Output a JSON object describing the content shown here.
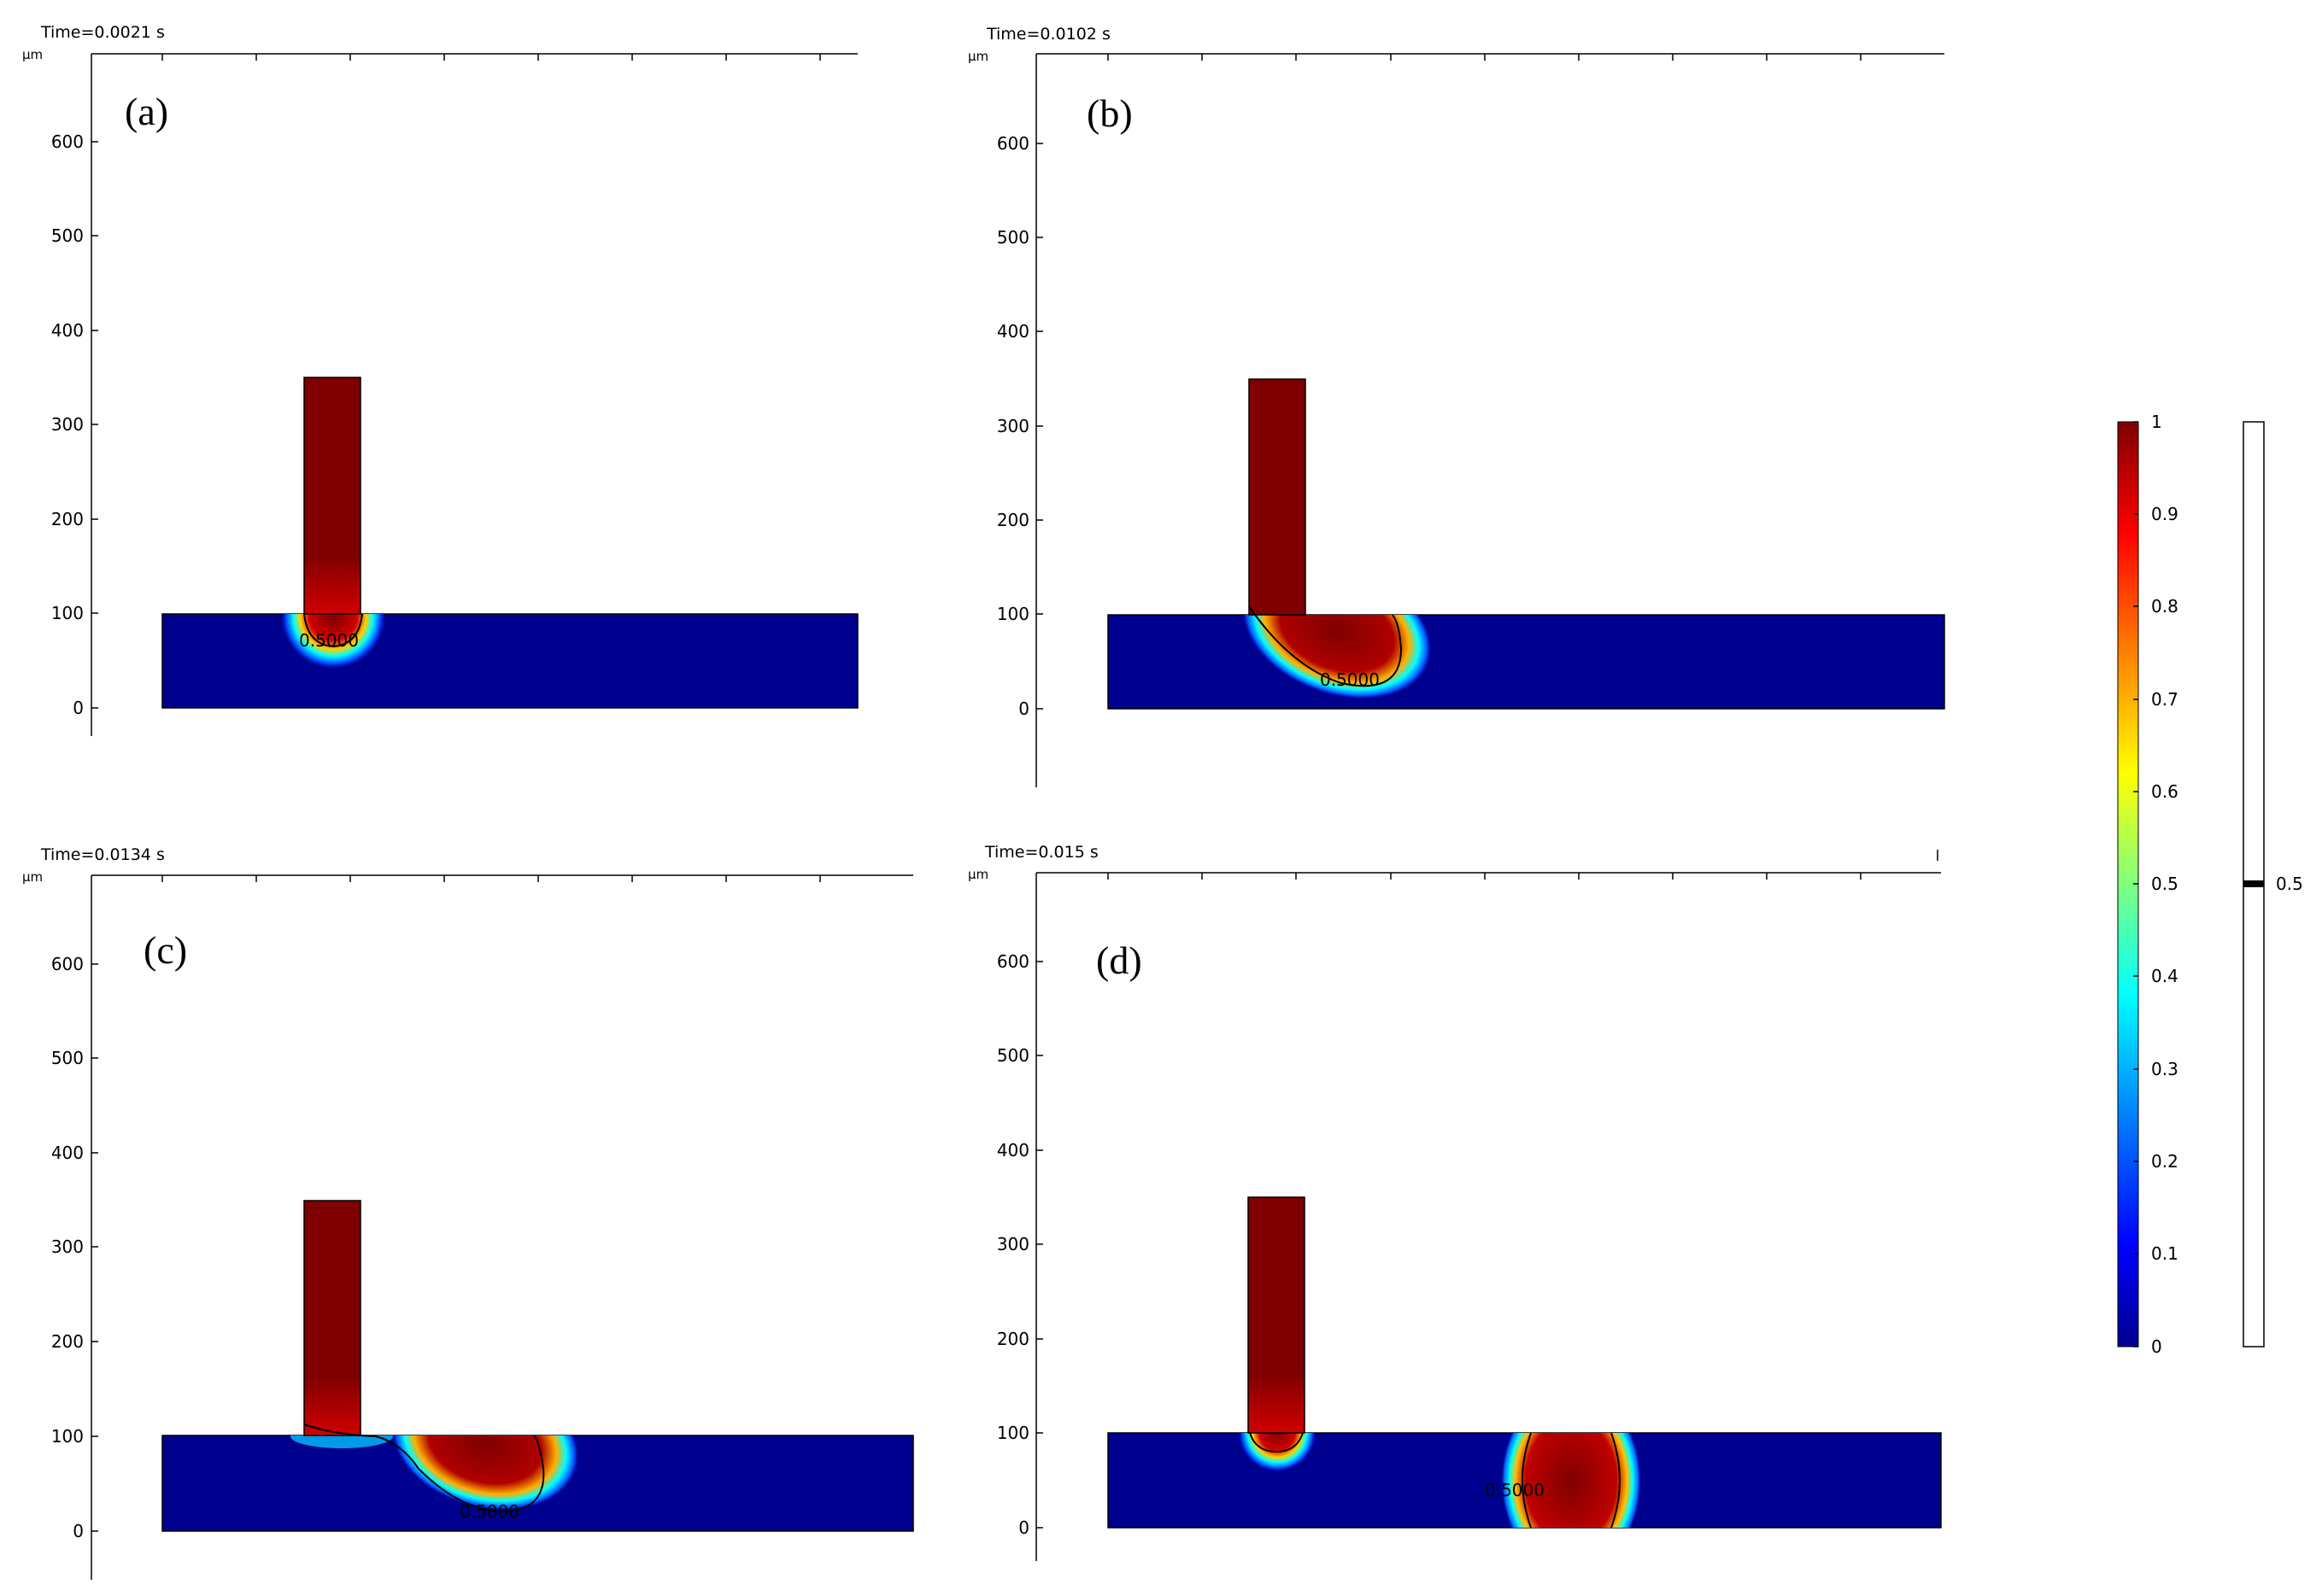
{
  "figure": {
    "unit": "µm",
    "contour_level_label": "0.5000",
    "colors": {
      "material": "#7f0000",
      "substrate": "#00008f",
      "axis": "#000000"
    }
  },
  "panels": [
    {
      "id": "a",
      "label": "(a)",
      "time": "Time=0.0021 s",
      "y_ticks": [
        "0",
        "100",
        "200",
        "300",
        "400",
        "500",
        "600"
      ],
      "melt": "pool-a"
    },
    {
      "id": "b",
      "label": "(b)",
      "time": "Time=0.0102 s",
      "y_ticks": [
        "0",
        "100",
        "200",
        "300",
        "400",
        "500",
        "600"
      ],
      "melt": "pool-b"
    },
    {
      "id": "c",
      "label": "(c)",
      "time": "Time=0.0134 s",
      "y_ticks": [
        "0",
        "100",
        "200",
        "300",
        "400",
        "500",
        "600"
      ],
      "melt": "pool-c"
    },
    {
      "id": "d",
      "label": "(d)",
      "time": "Time=0.015 s",
      "y_ticks": [
        "0",
        "100",
        "200",
        "300",
        "400",
        "500",
        "600"
      ],
      "melt": "pool-d"
    }
  ],
  "colorbar": {
    "ticks": [
      "0",
      "0.1",
      "0.2",
      "0.3",
      "0.4",
      "0.5",
      "0.6",
      "0.7",
      "0.8",
      "0.9",
      "1"
    ],
    "stops": [
      "#00008f",
      "#0000ff",
      "#0080ff",
      "#00ffff",
      "#80ff80",
      "#ffff00",
      "#ff8000",
      "#ff0000",
      "#7f0000"
    ]
  },
  "contour_bar": {
    "level": "0.5"
  }
}
